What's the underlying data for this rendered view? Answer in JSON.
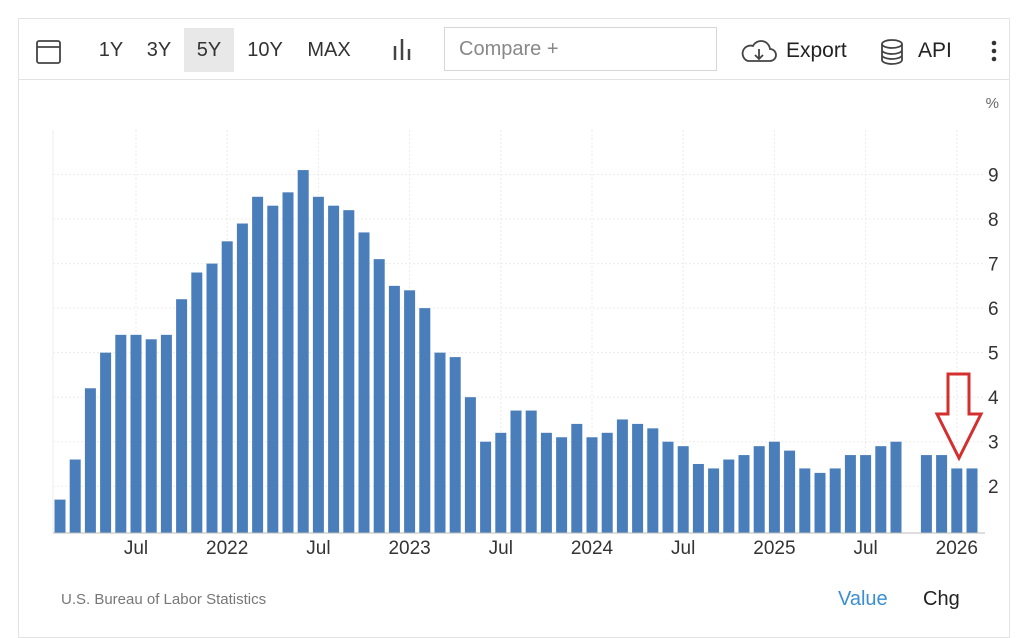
{
  "toolbar": {
    "ranges": [
      "1Y",
      "3Y",
      "5Y",
      "10Y",
      "MAX"
    ],
    "active_range": "5Y",
    "compare": "Compare +",
    "export": "Export",
    "api": "API"
  },
  "chart_data": {
    "type": "bar",
    "unit": "%",
    "categories": [
      null,
      null,
      null,
      null,
      null,
      "Jul",
      null,
      null,
      null,
      null,
      null,
      "2022",
      null,
      null,
      null,
      null,
      null,
      "Jul",
      null,
      null,
      null,
      null,
      null,
      "2023",
      null,
      null,
      null,
      null,
      null,
      "Jul",
      null,
      null,
      null,
      null,
      null,
      "2024",
      null,
      null,
      null,
      null,
      null,
      "Jul",
      null,
      null,
      null,
      null,
      null,
      "2025",
      null,
      null,
      null,
      null,
      null,
      "Jul",
      null,
      null,
      null,
      null,
      null,
      "2026",
      null
    ],
    "values": [
      1.7,
      2.6,
      4.2,
      5.0,
      5.4,
      5.4,
      5.3,
      5.4,
      6.2,
      6.8,
      7.0,
      7.5,
      7.9,
      8.5,
      8.3,
      8.6,
      9.1,
      8.5,
      8.3,
      8.2,
      7.7,
      7.1,
      6.5,
      6.4,
      6.0,
      5.0,
      4.9,
      4.0,
      3.0,
      3.2,
      3.7,
      3.7,
      3.2,
      3.1,
      3.4,
      3.1,
      3.2,
      3.5,
      3.4,
      3.3,
      3.0,
      2.9,
      2.5,
      2.4,
      2.6,
      2.7,
      2.9,
      3.0,
      2.8,
      2.4,
      2.3,
      2.4,
      2.7,
      2.7,
      2.9,
      3.0,
      null,
      2.7,
      2.7,
      2.4,
      2.4
    ],
    "color": "#4a7ebb",
    "ylim": [
      0.95,
      10
    ],
    "yticks": [
      2,
      3,
      4,
      5,
      6,
      7,
      8,
      9
    ],
    "grid": true,
    "source": "U.S. Bureau of Labor Statistics"
  },
  "footer": {
    "value": "Value",
    "chg": "Chg"
  }
}
